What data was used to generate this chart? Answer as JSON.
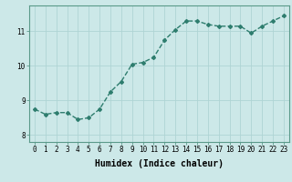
{
  "x": [
    0,
    1,
    2,
    3,
    4,
    5,
    6,
    7,
    8,
    9,
    10,
    11,
    12,
    13,
    14,
    15,
    16,
    17,
    18,
    19,
    20,
    21,
    22,
    23
  ],
  "y": [
    8.75,
    8.6,
    8.65,
    8.65,
    8.45,
    8.5,
    8.75,
    9.25,
    9.55,
    10.05,
    10.1,
    10.25,
    10.75,
    11.05,
    11.3,
    11.3,
    11.2,
    11.15,
    11.15,
    11.15,
    10.95,
    11.15,
    11.3,
    11.45
  ],
  "line_color": "#2e7d6e",
  "marker": "D",
  "marker_size": 2.0,
  "bg_color": "#cce8e8",
  "grid_color": "#afd4d4",
  "xlabel": "Humidex (Indice chaleur)",
  "xlabel_fontsize": 7,
  "yticks": [
    8,
    9,
    10,
    11
  ],
  "xticks": [
    0,
    1,
    2,
    3,
    4,
    5,
    6,
    7,
    8,
    9,
    10,
    11,
    12,
    13,
    14,
    15,
    16,
    17,
    18,
    19,
    20,
    21,
    22,
    23
  ],
  "ylim": [
    7.8,
    11.75
  ],
  "xlim": [
    -0.5,
    23.5
  ],
  "tick_fontsize": 5.5,
  "line_width": 1.0
}
